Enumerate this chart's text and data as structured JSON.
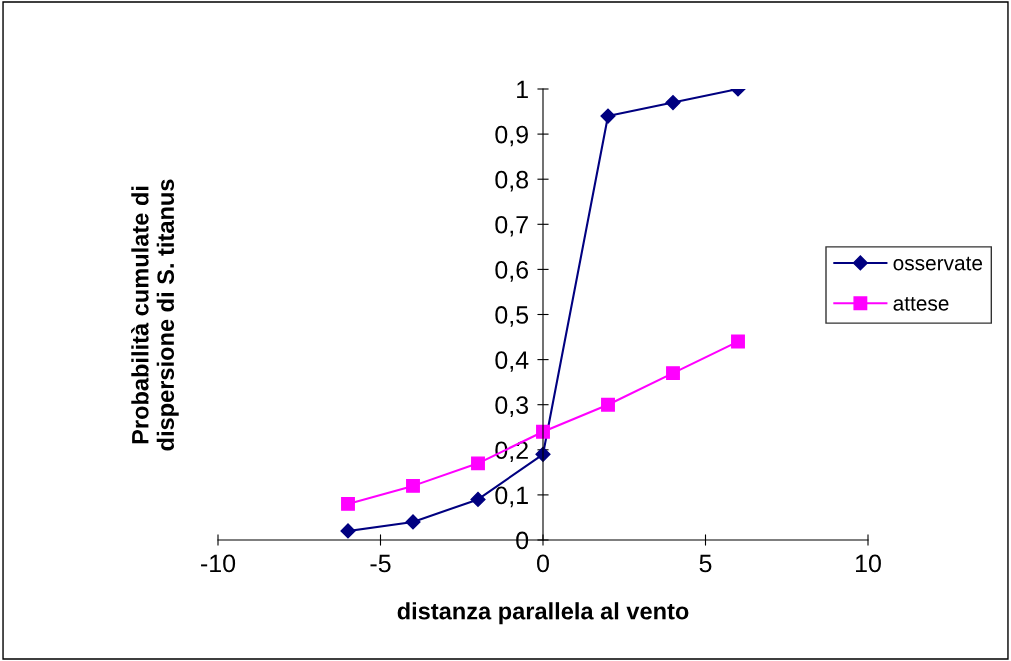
{
  "chart_data": {
    "type": "line",
    "xlabel": "distanza parallela al vento",
    "ylabel": "Probabilità cumulate di\ndispersione di S. titanus",
    "x": [
      -6,
      -4,
      -2,
      0,
      2,
      4,
      6
    ],
    "series": [
      {
        "name": "osservate",
        "color": "#000080",
        "marker": "diamond",
        "values": [
          0.02,
          0.04,
          0.09,
          0.19,
          0.94,
          0.97,
          1.0
        ]
      },
      {
        "name": "attese",
        "color": "#ff00ff",
        "marker": "square",
        "values": [
          0.08,
          0.12,
          0.17,
          0.24,
          0.3,
          0.37,
          0.44
        ]
      }
    ],
    "xlim": [
      -10,
      10
    ],
    "xticks": [
      -10,
      -5,
      0,
      5,
      10
    ],
    "ylim": [
      0,
      1
    ],
    "yticks": [
      0,
      {
        "value": 0.1,
        "label": "0,1"
      },
      {
        "value": 0.2,
        "label": "0,2"
      },
      {
        "value": 0.3,
        "label": "0,3"
      },
      {
        "value": 0.4,
        "label": "0,4"
      },
      {
        "value": 0.5,
        "label": "0,5"
      },
      {
        "value": 0.6,
        "label": "0,6"
      },
      {
        "value": 0.7,
        "label": "0,7"
      },
      {
        "value": 0.8,
        "label": "0,8"
      },
      {
        "value": 0.9,
        "label": "0,9"
      },
      1
    ],
    "grid": false,
    "legend": "right",
    "line_style": "solid"
  }
}
